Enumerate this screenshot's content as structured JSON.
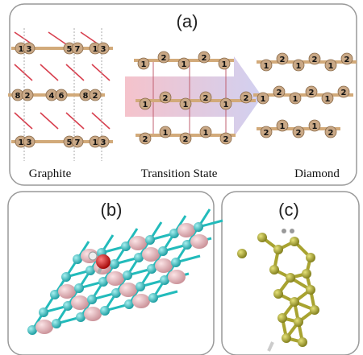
{
  "panel_a": {
    "label": "(a)",
    "graphite": {
      "caption": "Graphite",
      "rows": [
        [
          "1",
          "3",
          "5",
          "7",
          "1",
          "3"
        ],
        [
          "8",
          "2",
          "4",
          "6",
          "8",
          "2"
        ],
        [
          "1",
          "3",
          "5",
          "7",
          "1",
          "3"
        ]
      ]
    },
    "transition": {
      "caption": "Transition State",
      "rows": [
        [
          "1",
          "2",
          "1",
          "2",
          "1"
        ],
        [
          "1",
          "2",
          "1",
          "2",
          "1",
          "2"
        ],
        [
          "2",
          "1",
          "2",
          "1",
          "2"
        ]
      ]
    },
    "diamond": {
      "caption": "Diamond",
      "rows": [
        [
          "1",
          "2",
          "1",
          "2",
          "1",
          "2"
        ],
        [
          "1",
          "2",
          "1",
          "2",
          "1",
          "2"
        ],
        [
          "2",
          "1",
          "2",
          "1",
          "2"
        ]
      ]
    }
  },
  "panel_b": {
    "label": "(b)"
  },
  "panel_c": {
    "label": "(c)"
  }
}
